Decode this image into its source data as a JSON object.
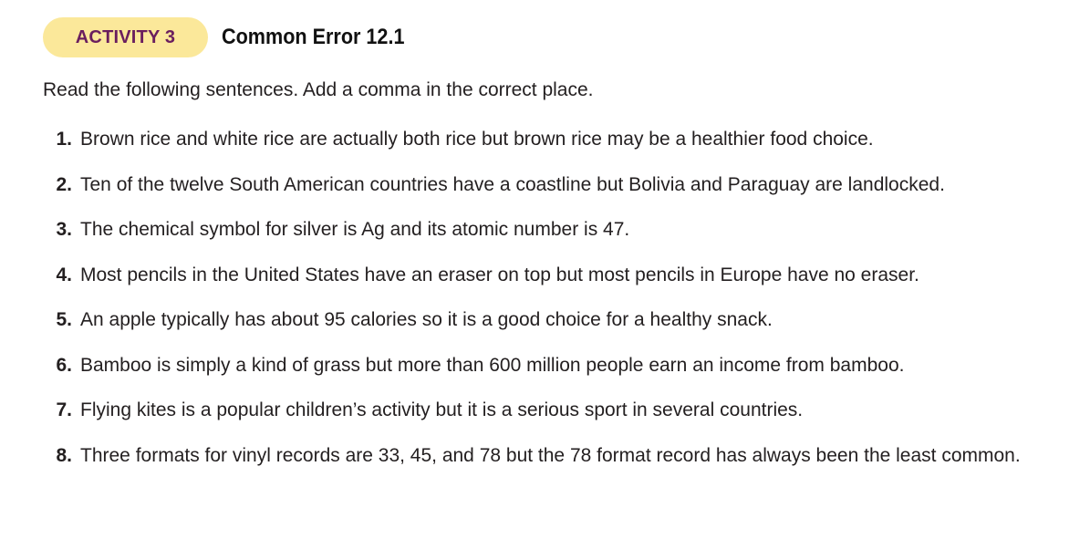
{
  "activity": {
    "badge": "ACTIVITY 3",
    "title": "Common Error 12.1",
    "instruction": "Read the following sentences. Add a comma in the correct place."
  },
  "items": [
    {
      "num": "1.",
      "text": "Brown rice and white rice are actually both rice but brown rice may be a healthier food choice."
    },
    {
      "num": "2.",
      "text": "Ten of the twelve South American countries have a coastline but Bolivia and Paraguay are landlocked."
    },
    {
      "num": "3.",
      "text": "The chemical symbol for silver is Ag and its atomic number is 47."
    },
    {
      "num": "4.",
      "text": "Most pencils in the United States have an eraser on top but most pencils in Europe have no eraser."
    },
    {
      "num": "5.",
      "text": "An apple typically has about 95 calories so it is a good choice for a healthy snack."
    },
    {
      "num": "6.",
      "text": "Bamboo is simply a kind of grass but more than 600 million people earn an income from bamboo."
    },
    {
      "num": "7.",
      "text": "Flying kites is a popular children’s activity but it is a serious sport in several countries."
    },
    {
      "num": "8.",
      "text": "Three formats for vinyl records are 33, 45, and 78 but the 78 format record has always been the least common."
    }
  ],
  "colors": {
    "badge_bg": "#fbe89a",
    "badge_text": "#6a1e5e",
    "body_text": "#231f20"
  }
}
